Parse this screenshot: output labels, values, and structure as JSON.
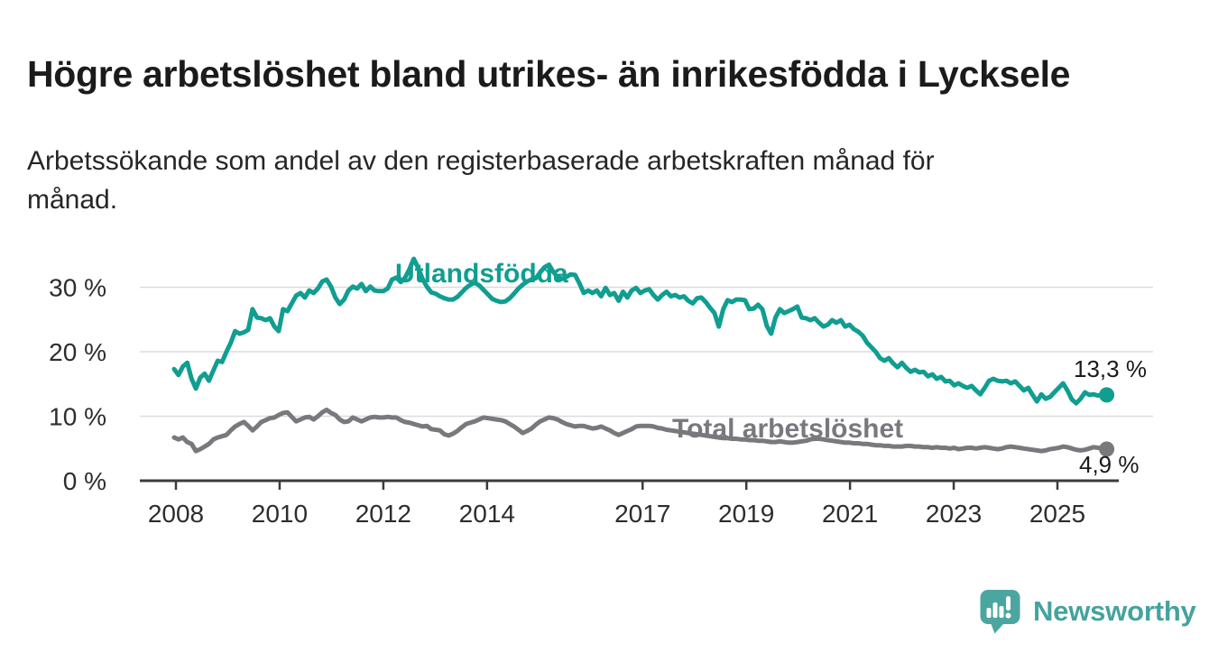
{
  "header": {
    "title": "Högre arbetslöshet bland utrikes- än inrikesfödda i Lycksele",
    "subtitle": "Arbetssökande som andel av den registerbaserade arbetskraften månad för månad."
  },
  "chart_data": {
    "type": "line",
    "title": "Högre arbetslöshet bland utrikes- än inrikesfödda i Lycksele",
    "unit": "%",
    "frequency": "monthly",
    "x_start": "2008-01",
    "x_end": "2025-11",
    "grid": "horizontal",
    "legend_position": "inline-labels",
    "x_axis": {
      "tick_years": [
        "2008",
        "2010",
        "2012",
        "2014",
        "2017",
        "2019",
        "2021",
        "2023",
        "2025"
      ]
    },
    "y_axis": {
      "tick_values": [
        0,
        10,
        20,
        30
      ],
      "tick_labels": [
        "0 %",
        "10 %",
        "20 %",
        "30 %"
      ],
      "gridline_values": [
        10,
        20,
        30
      ],
      "ylim": [
        0,
        36
      ]
    },
    "colors": {
      "grid": "#dcdcdc",
      "axis": "#3b3b3b",
      "tick_label": "#2d2d2d",
      "annotation": "#1a1a1a"
    },
    "series": [
      {
        "name": "Utlandsfödda",
        "color": "#109e91",
        "end_label": "13,3 %",
        "end_value": 13.3,
        "values": [
          17.3,
          16.4,
          17.7,
          18.3,
          15.8,
          14.3,
          16.0,
          16.6,
          15.5,
          17.1,
          18.6,
          18.4,
          20.0,
          21.4,
          23.2,
          22.8,
          23.0,
          23.4,
          26.6,
          25.3,
          25.2,
          24.9,
          25.2,
          23.9,
          23.2,
          26.6,
          26.3,
          27.5,
          28.7,
          29.1,
          28.4,
          29.5,
          29.1,
          29.8,
          30.9,
          31.2,
          30.1,
          28.4,
          27.4,
          28.1,
          29.5,
          30.1,
          29.8,
          30.5,
          29.4,
          30.1,
          29.5,
          29.4,
          29.4,
          29.8,
          31.2,
          31.5,
          30.8,
          31.5,
          32.8,
          34.4,
          33.0,
          31.3,
          30.1,
          29.2,
          29.0,
          28.6,
          28.3,
          28.1,
          28.1,
          28.5,
          29.2,
          29.9,
          30.4,
          30.7,
          30.3,
          29.6,
          28.9,
          28.2,
          27.9,
          27.7,
          27.8,
          28.3,
          29.0,
          29.8,
          30.4,
          30.9,
          31.2,
          31.4,
          32.3,
          33.1,
          33.5,
          32.4,
          31.6,
          31.3,
          31.6,
          32.0,
          31.9,
          30.6,
          29.1,
          29.5,
          29.1,
          29.5,
          28.6,
          29.9,
          28.8,
          29.1,
          27.9,
          29.3,
          28.4,
          29.5,
          29.9,
          29.1,
          29.5,
          29.7,
          28.8,
          28.1,
          28.8,
          29.3,
          28.6,
          28.8,
          28.4,
          28.6,
          27.9,
          27.5,
          28.3,
          28.4,
          27.7,
          26.8,
          26.0,
          23.9,
          26.6,
          28.0,
          27.7,
          28.1,
          28.1,
          28.0,
          26.6,
          26.7,
          27.3,
          26.6,
          24.0,
          22.8,
          25.3,
          26.6,
          26.0,
          26.3,
          26.6,
          27.0,
          25.3,
          25.2,
          24.9,
          25.2,
          24.5,
          23.9,
          24.2,
          24.9,
          24.5,
          24.9,
          23.9,
          24.2,
          23.5,
          23.1,
          22.5,
          21.4,
          20.7,
          20.0,
          19.0,
          18.6,
          19.0,
          18.2,
          17.6,
          18.3,
          17.5,
          16.9,
          17.2,
          16.8,
          16.9,
          16.2,
          16.5,
          15.8,
          16.1,
          15.4,
          15.5,
          14.8,
          15.1,
          14.7,
          14.4,
          14.7,
          14.0,
          13.4,
          14.4,
          15.5,
          15.8,
          15.5,
          15.4,
          15.5,
          15.1,
          15.4,
          14.7,
          14.0,
          14.4,
          13.3,
          12.3,
          13.4,
          12.7,
          13.0,
          13.7,
          14.4,
          15.1,
          14.0,
          12.6,
          12.0,
          12.7,
          13.7,
          13.3,
          13.4,
          13.2,
          13.4,
          13.3
        ]
      },
      {
        "name": "Total arbetslöshet",
        "color": "#78787d",
        "end_label": "4,9 %",
        "end_value": 4.9,
        "values": [
          6.7,
          6.4,
          6.7,
          6.0,
          5.7,
          4.6,
          4.9,
          5.3,
          5.7,
          6.4,
          6.7,
          6.9,
          7.1,
          7.8,
          8.4,
          8.8,
          9.1,
          8.5,
          7.8,
          8.4,
          9.1,
          9.4,
          9.7,
          9.8,
          10.2,
          10.5,
          10.6,
          9.9,
          9.2,
          9.5,
          9.8,
          9.9,
          9.5,
          10.0,
          10.6,
          11.0,
          10.5,
          10.2,
          9.5,
          9.1,
          9.2,
          9.8,
          9.5,
          9.2,
          9.5,
          9.8,
          9.9,
          9.8,
          9.8,
          9.9,
          9.8,
          9.8,
          9.4,
          9.1,
          9.0,
          8.8,
          8.6,
          8.4,
          8.5,
          8.0,
          7.9,
          7.8,
          7.2,
          7.0,
          7.3,
          7.7,
          8.3,
          8.8,
          9.0,
          9.2,
          9.5,
          9.8,
          9.7,
          9.6,
          9.5,
          9.4,
          9.2,
          8.8,
          8.4,
          7.9,
          7.4,
          7.7,
          8.1,
          8.7,
          9.2,
          9.5,
          9.8,
          9.7,
          9.5,
          9.1,
          8.8,
          8.6,
          8.4,
          8.5,
          8.5,
          8.3,
          8.1,
          8.2,
          8.4,
          8.1,
          7.8,
          7.4,
          7.1,
          7.4,
          7.7,
          8.0,
          8.4,
          8.5,
          8.5,
          8.5,
          8.4,
          8.2,
          8.1,
          7.9,
          7.8,
          7.7,
          7.6,
          7.5,
          7.4,
          7.3,
          7.2,
          7.1,
          7.0,
          6.9,
          6.8,
          6.7,
          6.6,
          6.6,
          6.5,
          6.5,
          6.4,
          6.4,
          6.3,
          6.3,
          6.2,
          6.2,
          6.1,
          6.0,
          6.0,
          6.1,
          6.0,
          5.9,
          5.9,
          6.0,
          6.1,
          6.2,
          6.4,
          6.5,
          6.5,
          6.4,
          6.3,
          6.2,
          6.1,
          6.0,
          5.9,
          5.9,
          5.8,
          5.8,
          5.7,
          5.7,
          5.6,
          5.5,
          5.5,
          5.4,
          5.4,
          5.3,
          5.3,
          5.3,
          5.4,
          5.4,
          5.3,
          5.3,
          5.2,
          5.2,
          5.1,
          5.2,
          5.1,
          5.1,
          5.0,
          5.1,
          4.9,
          5.0,
          5.1,
          5.1,
          5.0,
          5.1,
          5.2,
          5.1,
          5.0,
          4.9,
          5.0,
          5.2,
          5.3,
          5.2,
          5.1,
          5.0,
          4.9,
          4.8,
          4.7,
          4.6,
          4.7,
          4.9,
          5.0,
          5.1,
          5.3,
          5.2,
          5.0,
          4.8,
          4.7,
          4.8,
          5.0,
          5.2,
          5.1,
          5.0,
          4.9
        ]
      }
    ]
  },
  "footer": {
    "brand": "Newsworthy",
    "brand_color": "#44a39e",
    "logo_icon": "newsworthy-speech-bubble-bar-chart-icon"
  }
}
